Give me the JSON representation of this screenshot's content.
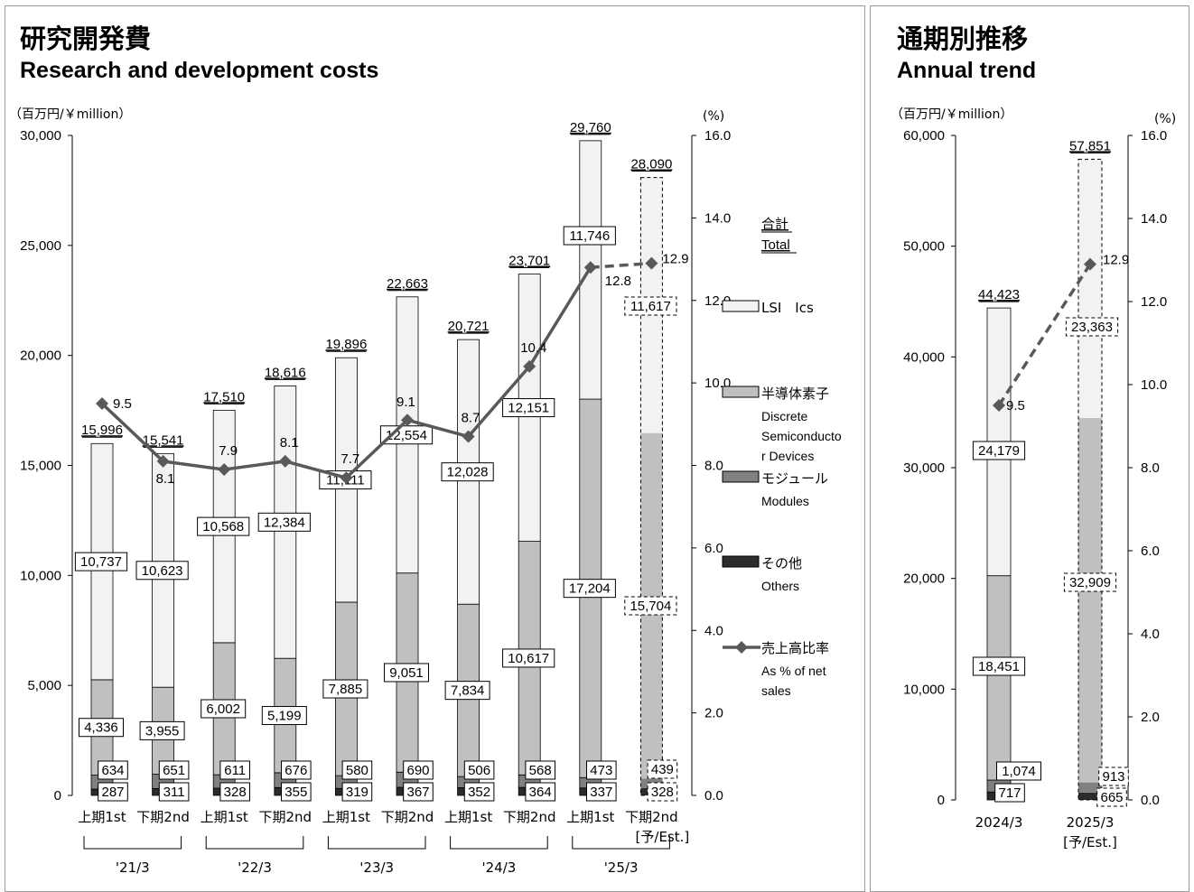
{
  "left": {
    "title_jp": "研究開発費",
    "title_en": "Research and development costs",
    "unit_left": "（百万円/￥million）",
    "unit_right": "(%)"
  },
  "right": {
    "title_jp": "通期別推移",
    "title_en": "Annual trend",
    "unit_left": "（百万円/￥million）",
    "unit_right": "(%)"
  },
  "legend": {
    "total_jp": "合計",
    "total_en": "Total",
    "items": [
      {
        "label": "LSI　Ics",
        "color": "#f2f2f2"
      },
      {
        "label": "半導体素子",
        "sub": [
          "Discrete",
          "Semiconducto",
          "r Devices"
        ],
        "color": "#c0c0c0"
      },
      {
        "label": "モジュール",
        "sub": [
          "Modules"
        ],
        "color": "#808080"
      },
      {
        "label": "その他",
        "sub": [
          "Others"
        ],
        "color": "#2b2b2b"
      },
      {
        "label": "売上高比率",
        "sub": [
          "As % of net",
          "sales"
        ],
        "color": "#595959",
        "type": "line"
      }
    ]
  },
  "chart_data": [
    {
      "type": "bar",
      "stacked": true,
      "categories": [
        "上期1st",
        "下期2nd",
        "上期1st",
        "下期2nd",
        "上期1st",
        "下期2nd",
        "上期1st",
        "下期2nd",
        "上期1st",
        "下期2nd"
      ],
      "groups": [
        {
          "label": "'21/3",
          "span": [
            0,
            1
          ]
        },
        {
          "label": "'22/3",
          "span": [
            2,
            3
          ]
        },
        {
          "label": "'23/3",
          "span": [
            4,
            5
          ]
        },
        {
          "label": "'24/3",
          "span": [
            6,
            7
          ]
        },
        {
          "label": "'25/3",
          "span": [
            8,
            9
          ]
        }
      ],
      "estimate_note": "[予/Est.]",
      "estimate_index": 9,
      "series": [
        {
          "name": "その他",
          "values": [
            287,
            311,
            328,
            355,
            319,
            367,
            352,
            364,
            337,
            328
          ]
        },
        {
          "name": "モジュール",
          "values": [
            634,
            651,
            611,
            676,
            580,
            690,
            506,
            568,
            473,
            439
          ]
        },
        {
          "name": "半導体素子",
          "values": [
            4336,
            3955,
            6002,
            5199,
            7885,
            9051,
            7834,
            10617,
            17204,
            15704
          ]
        },
        {
          "name": "LSI　Ics",
          "values": [
            10737,
            10623,
            10568,
            12384,
            11111,
            12554,
            12028,
            12151,
            11746,
            11617
          ]
        }
      ],
      "totals": [
        15996,
        15541,
        17510,
        18616,
        19896,
        22663,
        20721,
        23701,
        29760,
        28090
      ],
      "ratio": {
        "name": "売上高比率",
        "values": [
          9.5,
          8.1,
          7.9,
          8.1,
          7.7,
          9.1,
          8.7,
          10.4,
          12.8,
          12.9
        ]
      },
      "ylim": [
        0,
        30000
      ],
      "yticks": [
        0,
        5000,
        10000,
        15000,
        20000,
        25000,
        30000
      ],
      "ytick_labels": [
        "0",
        "5,000",
        "10,000",
        "15,000",
        "20,000",
        "25,000",
        "30,000"
      ],
      "y2lim": [
        0,
        16
      ],
      "y2ticks": [
        "0.0",
        "2.0",
        "4.0",
        "6.0",
        "8.0",
        "10.0",
        "12.0",
        "14.0",
        "16.0"
      ]
    },
    {
      "type": "bar",
      "stacked": true,
      "categories": [
        "2024/3",
        "2025/3"
      ],
      "estimate_note": "[予/Est.]",
      "estimate_index": 1,
      "series": [
        {
          "name": "その他",
          "values": [
            717,
            665
          ]
        },
        {
          "name": "モジュール",
          "values": [
            1074,
            913
          ]
        },
        {
          "name": "半導体素子",
          "values": [
            18451,
            32909
          ]
        },
        {
          "name": "LSI　Ics",
          "values": [
            24179,
            23363
          ]
        }
      ],
      "totals": [
        44423,
        57851
      ],
      "ratio": {
        "name": "売上高比率",
        "values": [
          9.5,
          12.9
        ]
      },
      "ylim": [
        0,
        60000
      ],
      "yticks": [
        0,
        10000,
        20000,
        30000,
        40000,
        50000,
        60000
      ],
      "ytick_labels": [
        "0",
        "10,000",
        "20,000",
        "30,000",
        "40,000",
        "50,000",
        "60,000"
      ],
      "y2lim": [
        0,
        16
      ],
      "y2ticks": [
        "0.0",
        "2.0",
        "4.0",
        "6.0",
        "8.0",
        "10.0",
        "12.0",
        "14.0",
        "16.0"
      ]
    }
  ]
}
